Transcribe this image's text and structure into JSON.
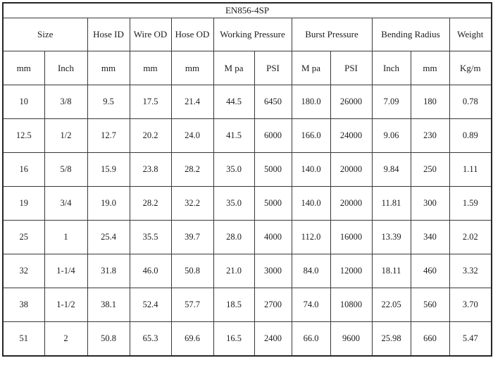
{
  "table": {
    "title": "EN856-4SP",
    "column_groups": [
      {
        "label": "Size",
        "span": 2
      },
      {
        "label": "Hose ID",
        "span": 1
      },
      {
        "label": "Wire OD",
        "span": 1
      },
      {
        "label": "Hose OD",
        "span": 1
      },
      {
        "label": "Working Pressure",
        "span": 2
      },
      {
        "label": "Burst Pressure",
        "span": 2
      },
      {
        "label": "Bending Radius",
        "span": 2
      },
      {
        "label": "Weight",
        "span": 1
      }
    ],
    "units": [
      "mm",
      "Inch",
      "mm",
      "mm",
      "mm",
      "M pa",
      "PSI",
      "M pa",
      "PSI",
      "Inch",
      "mm",
      "Kg/m"
    ],
    "rows": [
      [
        "10",
        "3/8",
        "9.5",
        "17.5",
        "21.4",
        "44.5",
        "6450",
        "180.0",
        "26000",
        "7.09",
        "180",
        "0.78"
      ],
      [
        "12.5",
        "1/2",
        "12.7",
        "20.2",
        "24.0",
        "41.5",
        "6000",
        "166.0",
        "24000",
        "9.06",
        "230",
        "0.89"
      ],
      [
        "16",
        "5/8",
        "15.9",
        "23.8",
        "28.2",
        "35.0",
        "5000",
        "140.0",
        "20000",
        "9.84",
        "250",
        "1.11"
      ],
      [
        "19",
        "3/4",
        "19.0",
        "28.2",
        "32.2",
        "35.0",
        "5000",
        "140.0",
        "20000",
        "11.81",
        "300",
        "1.59"
      ],
      [
        "25",
        "1",
        "25.4",
        "35.5",
        "39.7",
        "28.0",
        "4000",
        "112.0",
        "16000",
        "13.39",
        "340",
        "2.02"
      ],
      [
        "32",
        "1-1/4",
        "31.8",
        "46.0",
        "50.8",
        "21.0",
        "3000",
        "84.0",
        "12000",
        "18.11",
        "460",
        "3.32"
      ],
      [
        "38",
        "1-1/2",
        "38.1",
        "52.4",
        "57.7",
        "18.5",
        "2700",
        "74.0",
        "10800",
        "22.05",
        "560",
        "3.70"
      ],
      [
        "51",
        "2",
        "50.8",
        "65.3",
        "69.6",
        "16.5",
        "2400",
        "66.0",
        "9600",
        "25.98",
        "660",
        "5.47"
      ]
    ],
    "colors": {
      "border": "#383838",
      "outer_border": "#262626",
      "text": "#1c1c1c",
      "background": "#ffffff"
    }
  }
}
